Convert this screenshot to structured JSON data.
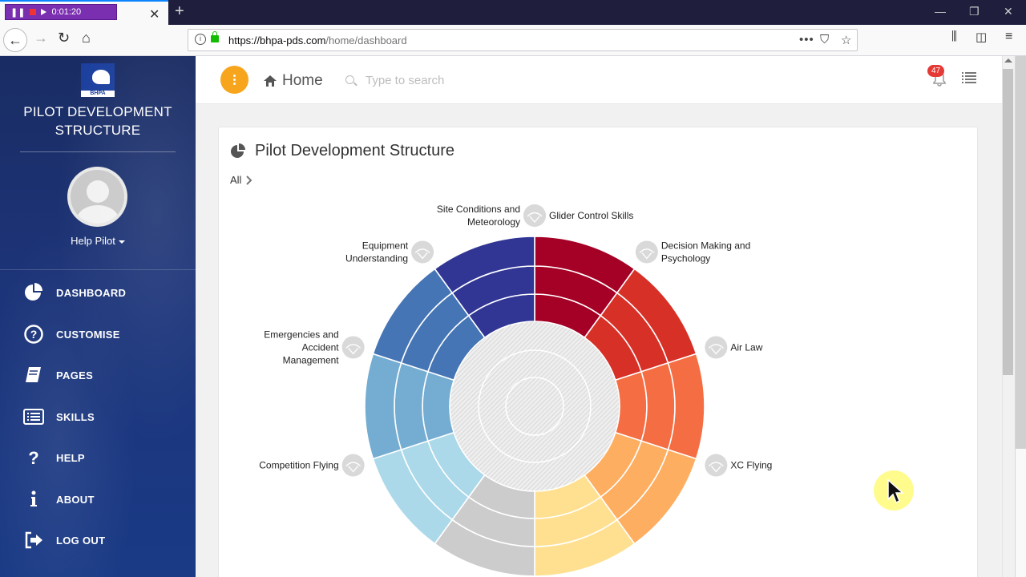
{
  "browser": {
    "recorder_time": "0:01:20",
    "url_host": "https://bhpa-pds.com",
    "url_path": "/home/dashboard"
  },
  "sidebar": {
    "logo_text": "BHPA",
    "title_line1": "PILOT DEVELOPMENT",
    "title_line2": "STRUCTURE",
    "user_name": "Help Pilot",
    "items": [
      {
        "label": "DASHBOARD",
        "icon": "pie-chart-icon"
      },
      {
        "label": "CUSTOMISE",
        "icon": "question-circle-icon"
      },
      {
        "label": "PAGES",
        "icon": "book-icon"
      },
      {
        "label": "SKILLS",
        "icon": "list-alt-icon"
      },
      {
        "label": "HELP",
        "icon": "question-icon"
      },
      {
        "label": "ABOUT",
        "icon": "info-icon"
      },
      {
        "label": "LOG OUT",
        "icon": "sign-out-icon"
      }
    ]
  },
  "header": {
    "home_label": "Home",
    "search_placeholder": "Type to search",
    "notification_count": "47"
  },
  "card": {
    "title": "Pilot Development Structure",
    "breadcrumb": "All"
  },
  "chart_data": {
    "type": "radial-segments",
    "rings": 3,
    "segments": [
      {
        "label_lines": [
          "Glider Control Skills"
        ],
        "color": "#a50026"
      },
      {
        "label_lines": [
          "Decision Making and",
          "Psychology"
        ],
        "color": "#d73027"
      },
      {
        "label_lines": [
          "Air Law"
        ],
        "color": "#f46d43"
      },
      {
        "label_lines": [
          "XC Flying"
        ],
        "color": "#fdae61"
      },
      {
        "label_lines": [],
        "color": "#fee090"
      },
      {
        "label_lines": [],
        "color": "#cccccc"
      },
      {
        "label_lines": [
          "Competition Flying"
        ],
        "color": "#abd9e9"
      },
      {
        "label_lines": [
          "Emergencies and",
          "Accident",
          "Management"
        ],
        "color": "#74add1"
      },
      {
        "label_lines": [
          "Equipment",
          "Understanding"
        ],
        "color": "#4575b4"
      },
      {
        "label_lines": [
          "Site Conditions and",
          "Meteorology"
        ],
        "color": "#313695"
      }
    ]
  }
}
